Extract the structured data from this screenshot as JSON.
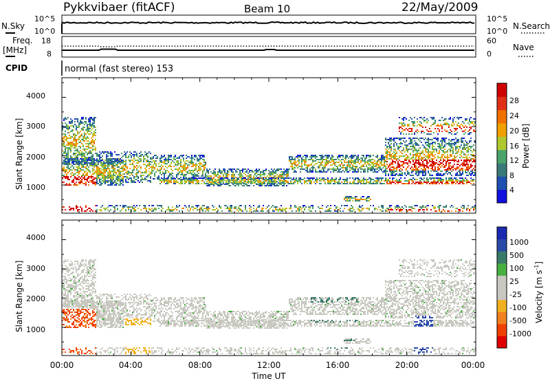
{
  "header": {
    "title": "Pykkvibaer (fitACF)",
    "beam": "Beam 10",
    "date": "22/May/2009"
  },
  "top_panels": {
    "nsky_label": "N.Sky",
    "nsky_ticks": [
      "10^5",
      "10^0"
    ],
    "nsearch_label": "N.Search",
    "nsearch_ticks": [
      "10^5",
      "10^0"
    ],
    "freq_label_1": "Freq.",
    "freq_label_2": "[MHz]",
    "freq_ticks": [
      "18",
      "8"
    ],
    "nave_label": "Nave",
    "nave_ticks": [
      "60",
      "0"
    ],
    "cpid_label": "CPID",
    "cpid_text": "normal (fast stereo) 153"
  },
  "colors": {
    "power_scale": [
      "#1010e0",
      "#1f4fb0",
      "#3a7a78",
      "#4aa46a",
      "#b0c830",
      "#f0a000",
      "#f07000",
      "#e03018",
      "#d00000"
    ],
    "velocity_scale": [
      "#e00000",
      "#f04000",
      "#f08020",
      "#f0b020",
      "#c8c8c0",
      "#c8c8c0",
      "#48b040",
      "#3a7a68",
      "#2a4aa8",
      "#1a2ab0"
    ]
  },
  "chart_data": [
    {
      "type": "heatmap",
      "name": "power",
      "ylabel": "Slant Range [km]",
      "yticks": [
        "1000",
        "2000",
        "3000",
        "4000"
      ],
      "colorbar_label": "Power [dB]",
      "colorbar_ticks": [
        "4",
        "8",
        "12",
        "16",
        "20",
        "24",
        "28"
      ],
      "ylim": [
        200,
        4600
      ],
      "clim": [
        0,
        32
      ]
    },
    {
      "type": "heatmap",
      "name": "velocity",
      "ylabel": "Slant Range [km]",
      "yticks": [
        "1000",
        "2000",
        "3000",
        "4000"
      ],
      "colorbar_label": "Velocity [m s",
      "colorbar_label_sup": "-1",
      "colorbar_label_end": "]",
      "colorbar_ticks": [
        "1000",
        "500",
        "100",
        "25",
        "-25",
        "-100",
        "-500",
        "-1000"
      ],
      "ylim": [
        200,
        4600
      ]
    }
  ],
  "x_axis": {
    "label": "Time UT",
    "ticks": [
      "00:00",
      "04:00",
      "08:00",
      "12:00",
      "16:00",
      "20:00",
      "00:00"
    ]
  }
}
